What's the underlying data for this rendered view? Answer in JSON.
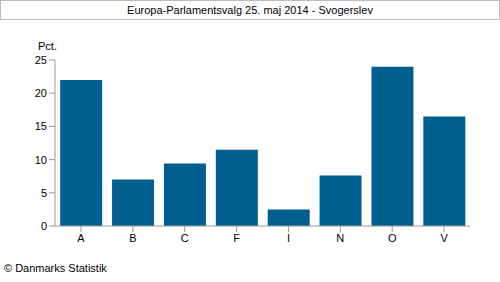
{
  "chart_data": {
    "type": "bar",
    "title": "Europa-Parlamentsvalg 25. maj 2014 - Svogerslev",
    "ylabel": "Pct.",
    "annotations": [
      "© Danmarks Statistik"
    ],
    "categories": [
      "A",
      "B",
      "C",
      "F",
      "I",
      "N",
      "O",
      "V"
    ],
    "values": [
      22,
      7,
      9.4,
      11.5,
      2.5,
      7.6,
      24,
      16.5
    ],
    "color": "#005f8f",
    "ylim": [
      0,
      25
    ],
    "yticks": [
      0,
      5,
      10,
      15,
      20,
      25
    ],
    "grid": false
  }
}
